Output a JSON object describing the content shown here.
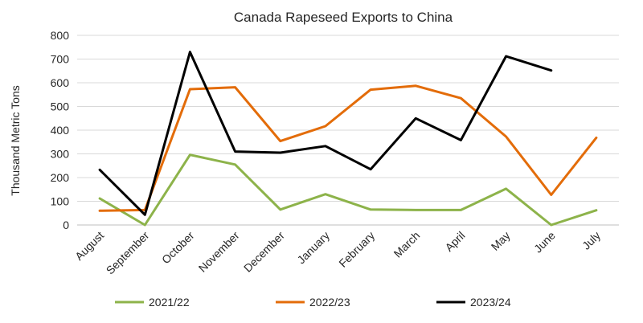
{
  "chart_data": {
    "type": "line",
    "title": "Canada Rapeseed Exports to China",
    "xlabel": "",
    "ylabel": "Thousand Metric Tons",
    "ylim": [
      0,
      800
    ],
    "yticks": [
      "0",
      "100",
      "200",
      "300",
      "400",
      "500",
      "600",
      "700",
      "800"
    ],
    "categories": [
      "August",
      "September",
      "October",
      "November",
      "December",
      "January",
      "February",
      "March",
      "April",
      "May",
      "June",
      "July"
    ],
    "grid": true,
    "legend_position": "bottom",
    "series": [
      {
        "name": "2021/22",
        "color": "#8db34a",
        "values": [
          112,
          0,
          296,
          255,
          65,
          130,
          65,
          63,
          63,
          153,
          0,
          62
        ]
      },
      {
        "name": "2022/23",
        "color": "#e36c09",
        "values": [
          60,
          63,
          573,
          581,
          354,
          417,
          571,
          587,
          535,
          373,
          127,
          368
        ]
      },
      {
        "name": "2023/24",
        "color": "#000000",
        "values": [
          233,
          43,
          730,
          310,
          305,
          333,
          235,
          450,
          358,
          712,
          652,
          null
        ]
      }
    ]
  }
}
